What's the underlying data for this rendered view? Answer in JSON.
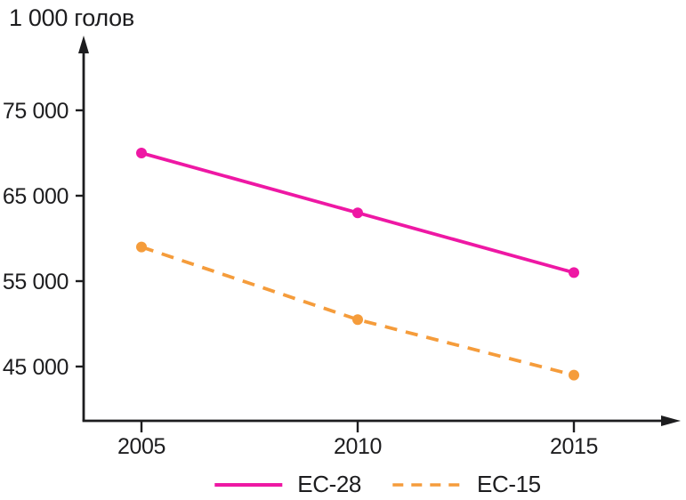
{
  "chart_data": {
    "type": "line",
    "title": "",
    "ylabel": "1 000 голов",
    "xlabel": "",
    "categories": [
      "2005",
      "2010",
      "2015"
    ],
    "y_ticks": [
      75000,
      65000,
      55000,
      45000
    ],
    "y_tick_labels": [
      "75 000",
      "65 000",
      "55 000",
      "45 000"
    ],
    "ylim": [
      39000,
      82000
    ],
    "grid": false,
    "legend_position": "bottom",
    "axis_color": "#1d1d1f",
    "series": [
      {
        "name": "ЕС-28",
        "style": "solid",
        "color": "#EE18A4",
        "values": [
          70000,
          63000,
          56000
        ]
      },
      {
        "name": "ЕС-15",
        "style": "dashed",
        "color": "#F59C3B",
        "values": [
          59000,
          50500,
          44000
        ]
      }
    ]
  }
}
